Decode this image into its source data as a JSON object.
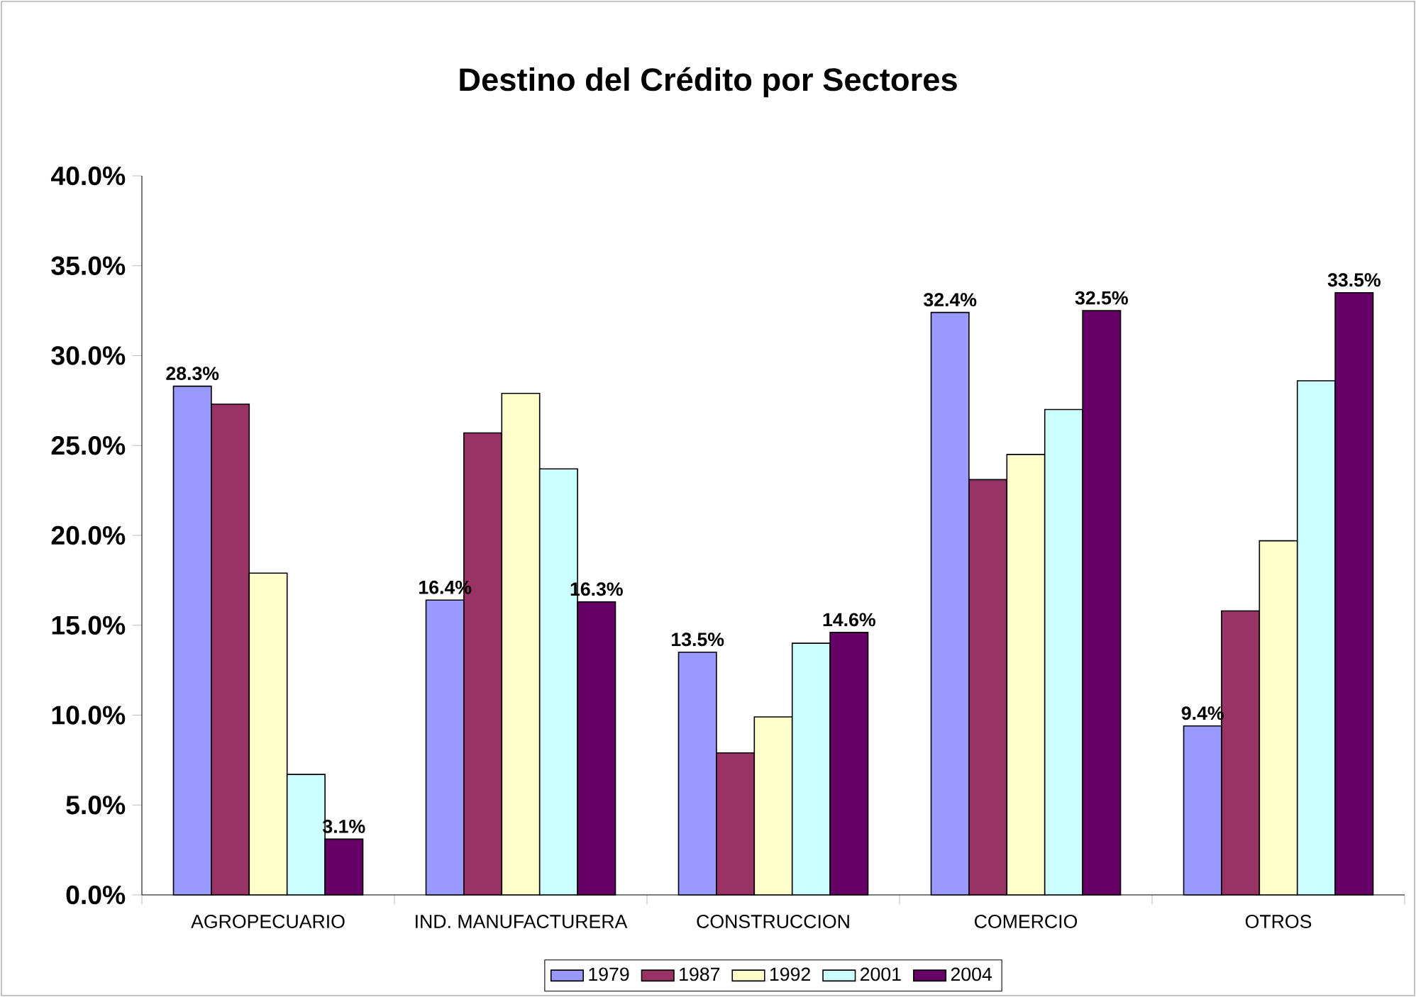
{
  "chart_data": {
    "type": "bar",
    "title": "Destino del Crédito por Sectores",
    "categories": [
      "AGROPECUARIO",
      "IND. MANUFACTURERA",
      "CONSTRUCCION",
      "COMERCIO",
      "OTROS"
    ],
    "series": [
      {
        "name": "1979",
        "color": "#9999ff",
        "values": [
          28.3,
          16.4,
          13.5,
          32.4,
          9.4
        ],
        "value_labels": [
          "28.3%",
          "16.4%",
          "13.5%",
          "32.4%",
          "9.4%"
        ]
      },
      {
        "name": "1987",
        "color": "#993366",
        "values": [
          27.3,
          25.7,
          7.9,
          23.1,
          15.8
        ]
      },
      {
        "name": "1992",
        "color": "#ffffcc",
        "values": [
          17.9,
          27.9,
          9.9,
          24.5,
          19.7
        ]
      },
      {
        "name": "2001",
        "color": "#ccffff",
        "values": [
          6.7,
          23.7,
          14.0,
          27.0,
          28.6
        ]
      },
      {
        "name": "2004",
        "color": "#660066",
        "values": [
          3.1,
          16.3,
          14.6,
          32.5,
          33.5
        ],
        "value_labels": [
          "3.1%",
          "16.3%",
          "14.6%",
          "32.5%",
          "33.5%"
        ]
      }
    ],
    "ylim": [
      0,
      40
    ],
    "yticks": [
      {
        "value": 0,
        "label": "0.0%"
      },
      {
        "value": 5,
        "label": "5.0%"
      },
      {
        "value": 10,
        "label": "10.0%"
      },
      {
        "value": 15,
        "label": "15.0%"
      },
      {
        "value": 20,
        "label": "20.0%"
      },
      {
        "value": 25,
        "label": "25.0%"
      },
      {
        "value": 30,
        "label": "30.0%"
      },
      {
        "value": 35,
        "label": "35.0%"
      },
      {
        "value": 40,
        "label": "40.0%"
      }
    ],
    "grid": false,
    "legend": "bottom"
  }
}
